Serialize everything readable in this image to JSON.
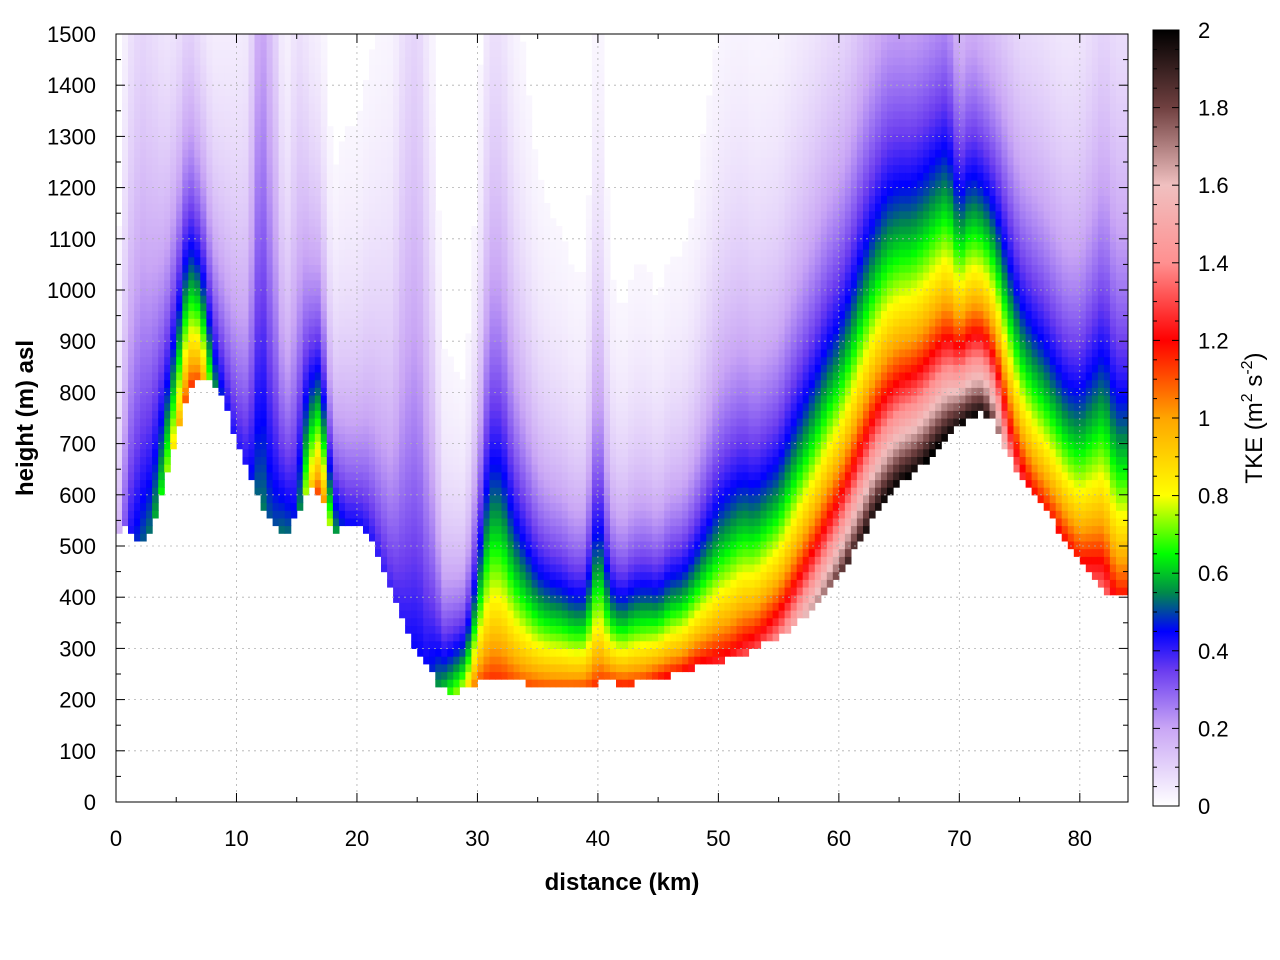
{
  "chart_data": {
    "type": "heatmap",
    "xlabel": "distance (km)",
    "ylabel": "height (m) asl",
    "xlim": [
      0,
      84
    ],
    "ylim": [
      0,
      1500
    ],
    "x_ticks": [
      "0",
      "10",
      "20",
      "30",
      "40",
      "50",
      "60",
      "70",
      "80"
    ],
    "y_ticks": [
      "0",
      "100",
      "200",
      "300",
      "400",
      "500",
      "600",
      "700",
      "800",
      "900",
      "1000",
      "1100",
      "1200",
      "1300",
      "1400",
      "1500"
    ],
    "grid": true,
    "colorbar": {
      "title_main": "TKE (m",
      "title_sup1": "2",
      "title_mid": " s",
      "title_sup2": "-2",
      "title_end": ")",
      "range": [
        0,
        2
      ],
      "ticks": [
        "0",
        "0.2",
        "0.4",
        "0.6",
        "0.8",
        "1",
        "1.2",
        "1.4",
        "1.6",
        "1.8",
        "2"
      ],
      "stops": [
        {
          "v": 0.0,
          "color": "#ffffff"
        },
        {
          "v": 0.2,
          "color": "#c9a6f5"
        },
        {
          "v": 0.35,
          "color": "#6a3cf0"
        },
        {
          "v": 0.45,
          "color": "#0000ff"
        },
        {
          "v": 0.55,
          "color": "#008a4a"
        },
        {
          "v": 0.65,
          "color": "#00ff00"
        },
        {
          "v": 0.8,
          "color": "#ffff00"
        },
        {
          "v": 1.0,
          "color": "#ffa500"
        },
        {
          "v": 1.2,
          "color": "#ff0000"
        },
        {
          "v": 1.4,
          "color": "#ff9090"
        },
        {
          "v": 1.6,
          "color": "#f0c0c0"
        },
        {
          "v": 1.8,
          "color": "#704040"
        },
        {
          "v": 2.0,
          "color": "#000000"
        }
      ]
    },
    "terrain": {
      "x": [
        0,
        1,
        2,
        3,
        4,
        5,
        6,
        7,
        8,
        9,
        10,
        11,
        12,
        13,
        14,
        15,
        16,
        17,
        18,
        19,
        20,
        21,
        22,
        23,
        24,
        25,
        26,
        27,
        28,
        29,
        30,
        31,
        32,
        33,
        34,
        35,
        36,
        37,
        38,
        39,
        40,
        41,
        42,
        43,
        44,
        45,
        46,
        47,
        48,
        49,
        50,
        51,
        52,
        53,
        54,
        55,
        56,
        57,
        58,
        59,
        60,
        61,
        62,
        63,
        64,
        65,
        66,
        67,
        68,
        69,
        70,
        71,
        72,
        73,
        74,
        75,
        76,
        77,
        78,
        79,
        80,
        81,
        82,
        83
      ],
      "height": [
        520,
        540,
        510,
        530,
        620,
        720,
        810,
        830,
        820,
        780,
        700,
        640,
        590,
        540,
        520,
        560,
        620,
        600,
        530,
        540,
        540,
        530,
        470,
        400,
        340,
        290,
        260,
        220,
        215,
        225,
        235,
        240,
        238,
        236,
        232,
        228,
        226,
        226,
        226,
        228,
        232,
        235,
        230,
        232,
        236,
        240,
        248,
        255,
        262,
        268,
        275,
        282,
        290,
        300,
        312,
        325,
        340,
        360,
        380,
        405,
        440,
        480,
        520,
        560,
        595,
        625,
        640,
        660,
        690,
        715,
        735,
        752,
        760,
        740,
        680,
        640,
        610,
        575,
        540,
        500,
        470,
        440,
        405,
        400
      ]
    },
    "tke_profile": {
      "x": [
        0,
        1,
        2,
        3,
        4,
        5,
        6,
        7,
        8,
        9,
        10,
        11,
        12,
        13,
        14,
        15,
        16,
        17,
        18,
        19,
        20,
        21,
        22,
        23,
        24,
        25,
        26,
        27,
        28,
        29,
        30,
        31,
        32,
        33,
        34,
        35,
        36,
        37,
        38,
        39,
        40,
        41,
        42,
        43,
        44,
        45,
        46,
        47,
        48,
        49,
        50,
        51,
        52,
        53,
        54,
        55,
        56,
        57,
        58,
        59,
        60,
        61,
        62,
        63,
        64,
        65,
        66,
        67,
        68,
        69,
        70,
        71,
        72,
        73,
        74,
        75,
        76,
        77,
        78,
        79,
        80,
        81,
        82,
        83
      ],
      "tke_at_ground": [
        0.1,
        0.4,
        0.5,
        0.55,
        0.7,
        0.9,
        1.15,
        1.1,
        0.6,
        0.45,
        0.42,
        0.44,
        0.55,
        0.5,
        0.55,
        0.45,
        0.85,
        1.2,
        0.6,
        0.45,
        0.45,
        0.42,
        0.4,
        0.4,
        0.42,
        0.45,
        0.45,
        0.6,
        0.7,
        0.8,
        1.1,
        1.15,
        1.15,
        1.12,
        1.1,
        1.1,
        1.1,
        1.1,
        1.1,
        1.1,
        1.15,
        1.15,
        1.15,
        1.15,
        1.15,
        1.2,
        1.2,
        1.2,
        1.25,
        1.25,
        1.25,
        1.25,
        1.3,
        1.3,
        1.35,
        1.4,
        1.5,
        1.6,
        1.7,
        1.8,
        1.85,
        1.9,
        1.95,
        2.0,
        2.0,
        2.0,
        2.0,
        2.0,
        2.0,
        2.0,
        2.0,
        2.0,
        2.0,
        1.8,
        1.5,
        1.3,
        1.2,
        1.2,
        1.2,
        1.2,
        1.2,
        1.3,
        1.4,
        1.2
      ],
      "decay_scale_m": [
        200,
        500,
        600,
        500,
        350,
        300,
        300,
        250,
        250,
        300,
        350,
        400,
        1000,
        700,
        300,
        500,
        300,
        250,
        200,
        250,
        250,
        300,
        350,
        400,
        700,
        800,
        500,
        200,
        180,
        160,
        250,
        450,
        450,
        350,
        300,
        250,
        230,
        220,
        200,
        200,
        350,
        200,
        180,
        200,
        200,
        180,
        200,
        200,
        220,
        260,
        300,
        320,
        320,
        300,
        300,
        300,
        320,
        330,
        340,
        350,
        350,
        360,
        380,
        390,
        400,
        390,
        380,
        380,
        380,
        380,
        300,
        320,
        300,
        300,
        320,
        320,
        330,
        330,
        320,
        320,
        340,
        380,
        420,
        400
      ]
    }
  }
}
